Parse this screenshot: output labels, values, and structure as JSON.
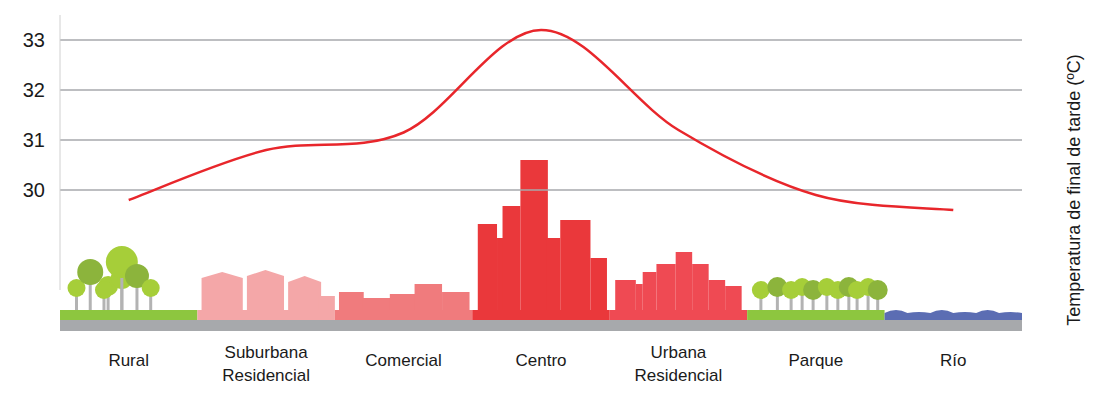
{
  "chart_data": {
    "type": "line",
    "categories": [
      "Rural",
      "Suburbana Residencial",
      "Comercial",
      "Centro",
      "Urbana Residencial",
      "Parque",
      "Río"
    ],
    "values": [
      29.8,
      30.8,
      31.15,
      33.2,
      31.2,
      29.9,
      29.6
    ],
    "color": "#e8262b",
    "ylabel": "Temperatura de final de tarde (ºC)",
    "ylim": [
      28,
      33.5
    ],
    "yticks": [
      30,
      31,
      32,
      33
    ],
    "grid": true
  }
}
